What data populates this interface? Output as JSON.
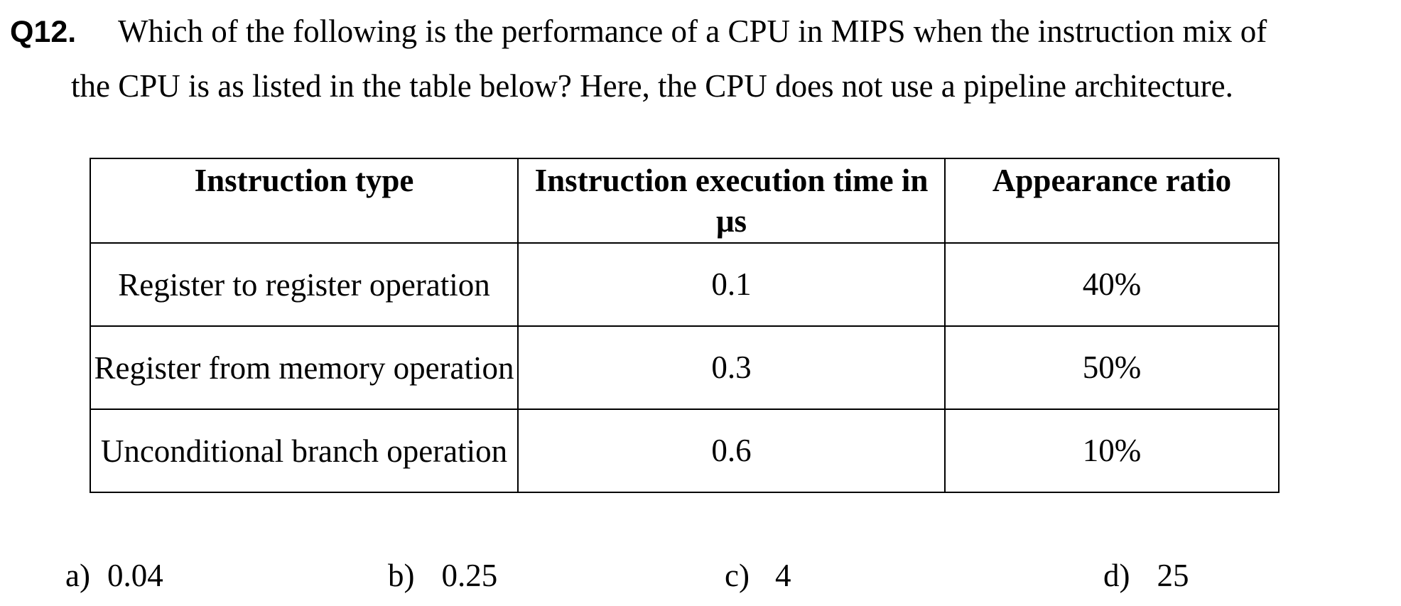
{
  "question": {
    "number": "Q12.",
    "line1": "Which of the following is the performance of a CPU in MIPS when the instruction mix of",
    "line2": "the CPU is as listed in the table below? Here, the CPU does not use a pipeline architecture."
  },
  "table": {
    "headers": [
      "Instruction type",
      "Instruction execution time in μs",
      "Appearance ratio"
    ],
    "rows": [
      {
        "type": "Register to register operation",
        "time": "0.1",
        "ratio": "40%"
      },
      {
        "type": "Register from memory operation",
        "time": "0.3",
        "ratio": "50%"
      },
      {
        "type": "Unconditional branch operation",
        "time": "0.6",
        "ratio": "10%"
      }
    ]
  },
  "options": [
    {
      "letter": "a)",
      "value": "0.04"
    },
    {
      "letter": "b)",
      "value": "0.25"
    },
    {
      "letter": "c)",
      "value": "4"
    },
    {
      "letter": "d)",
      "value": "25"
    }
  ]
}
